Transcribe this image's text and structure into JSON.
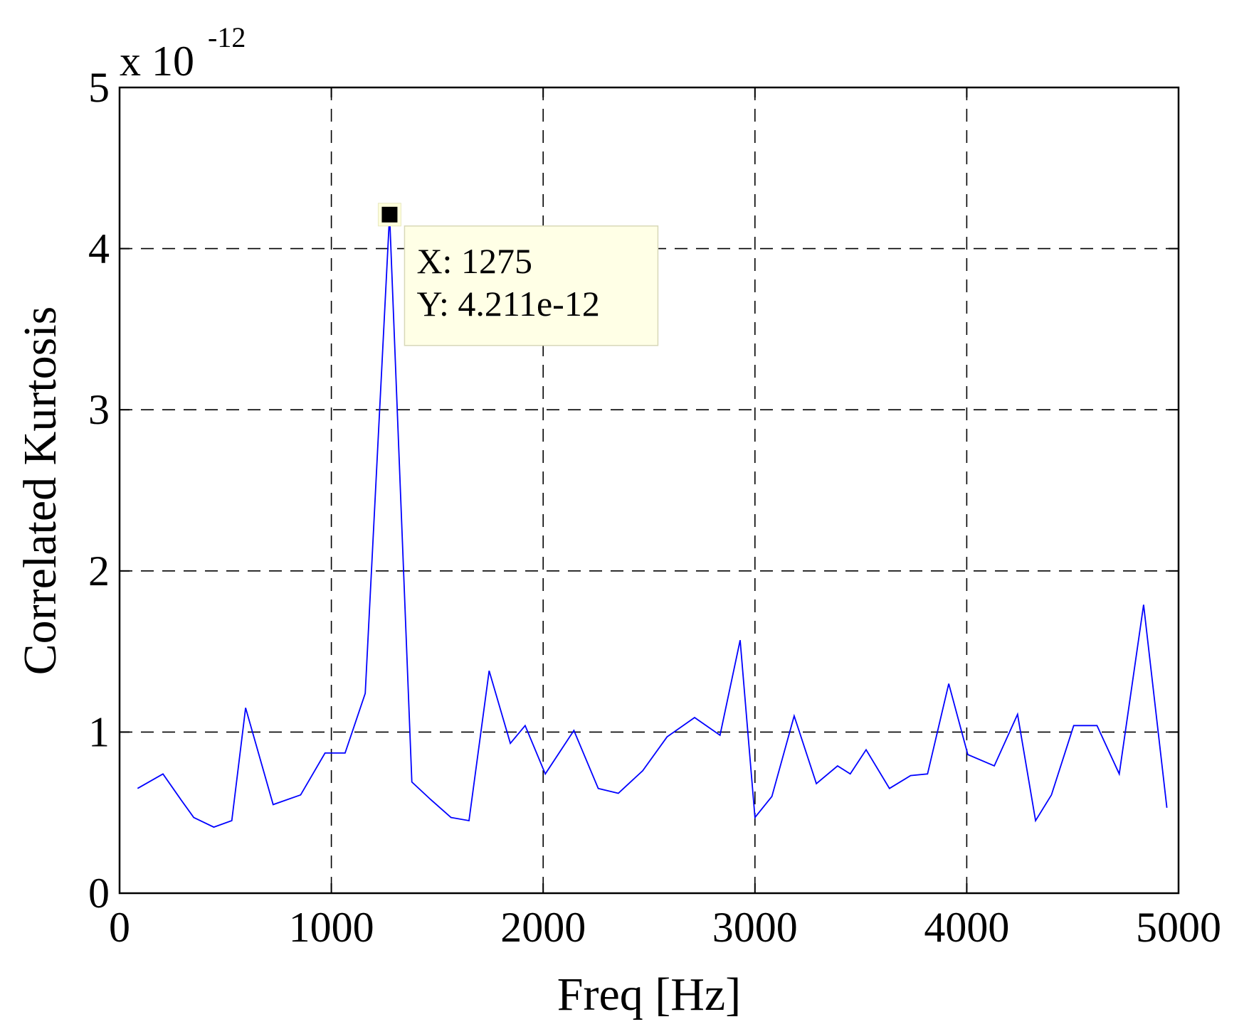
{
  "chart_data": {
    "type": "line",
    "title": "",
    "xlabel": "Freq [Hz]",
    "ylabel": "Correlated Kurtosis",
    "y_scale_label": {
      "prefix": "x 10",
      "exponent": "-12"
    },
    "xlim": [
      0,
      5000
    ],
    "ylim": [
      0,
      5
    ],
    "x_ticks": [
      0,
      1000,
      2000,
      3000,
      4000,
      5000
    ],
    "y_ticks": [
      0,
      1,
      2,
      3,
      4,
      5
    ],
    "grid": true,
    "series": [
      {
        "name": "Correlated Kurtosis",
        "color": "#0000ff",
        "x": [
          85,
          205,
          290,
          350,
          445,
          530,
          595,
          725,
          855,
          970,
          1065,
          1160,
          1275,
          1380,
          1470,
          1565,
          1650,
          1745,
          1845,
          1915,
          2010,
          2145,
          2260,
          2355,
          2470,
          2585,
          2715,
          2835,
          2930,
          3000,
          3080,
          3185,
          3290,
          3390,
          3450,
          3525,
          3635,
          3735,
          3815,
          3915,
          4005,
          4130,
          4240,
          4325,
          4400,
          4505,
          4615,
          4720,
          4835,
          4945
        ],
        "y": [
          0.65,
          0.74,
          0.58,
          0.47,
          0.41,
          0.45,
          1.15,
          0.55,
          0.61,
          0.87,
          0.87,
          1.24,
          4.211,
          0.69,
          0.58,
          0.47,
          0.45,
          1.38,
          0.93,
          1.04,
          0.74,
          1.01,
          0.65,
          0.62,
          0.76,
          0.97,
          1.09,
          0.98,
          1.57,
          0.47,
          0.6,
          1.1,
          0.68,
          0.79,
          0.74,
          0.89,
          0.65,
          0.73,
          0.74,
          1.3,
          0.86,
          0.79,
          1.11,
          0.45,
          0.61,
          1.04,
          1.04,
          0.74,
          1.79,
          0.53
        ]
      }
    ],
    "annotations": [
      {
        "type": "datatip",
        "x": 1275,
        "y": 4.211,
        "line1": "X: 1275",
        "line2": "Y: 4.211e-12"
      }
    ]
  }
}
